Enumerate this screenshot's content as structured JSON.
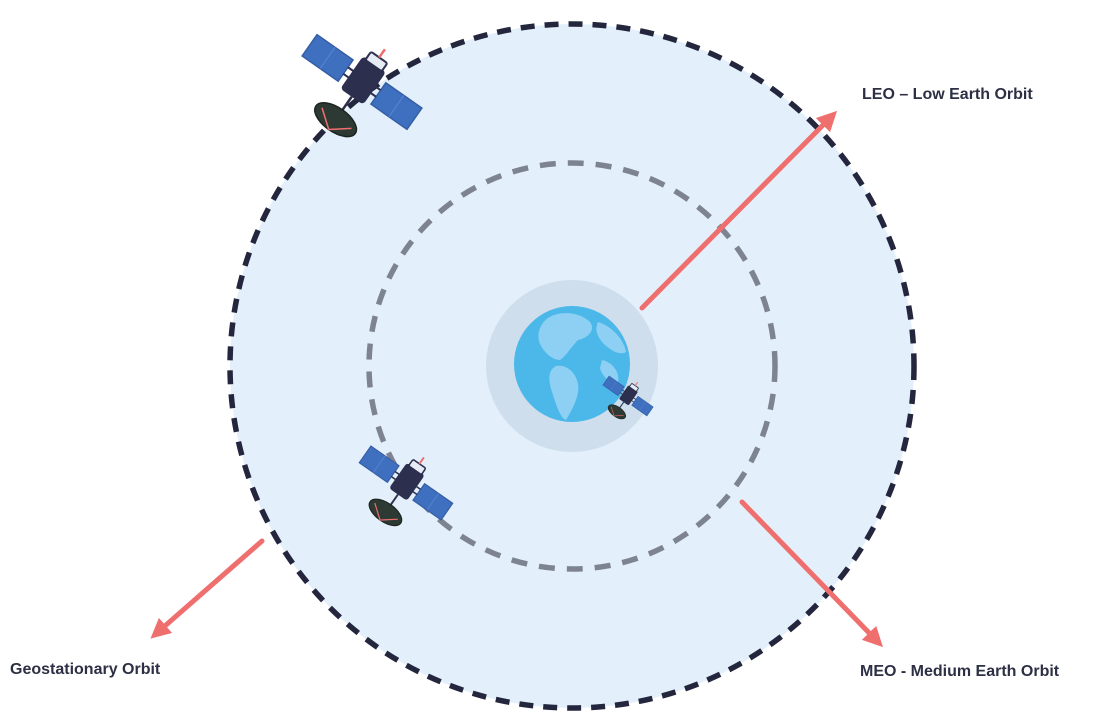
{
  "labels": {
    "leo": "LEO – Low Earth Orbit",
    "geo": "Geostationary Orbit",
    "meo": "MEO - Medium Earth Orbit"
  },
  "colors": {
    "background": "#ffffff",
    "space_fill": "#e3f0fb",
    "geo_orbit": "#23263d",
    "meo_orbit": "#7e8391",
    "earth_halo": "#cfdeec",
    "earth_ocean": "#4cb8ea",
    "earth_land": "#8ed0f3",
    "arrow": "#ef6f6f",
    "satellite_panel": "#3f6fbf",
    "satellite_body": "#2c2f4e",
    "satellite_dish": "#2d3a33",
    "label_text": "#2d3044"
  },
  "icons": [
    "satellite-icon",
    "earth-icon",
    "arrow-icon"
  ]
}
